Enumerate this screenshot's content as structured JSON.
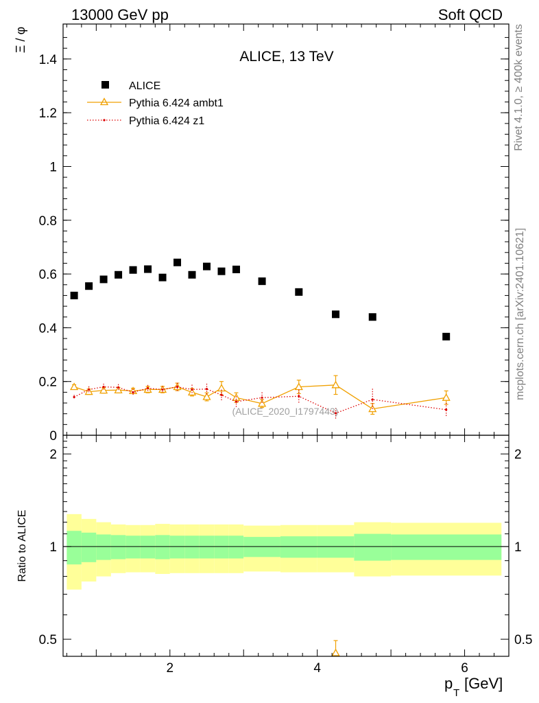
{
  "header": {
    "left": "13000 GeV pp",
    "right": "Soft QCD"
  },
  "side_labels": {
    "rivet": "Rivet 4.1.0, ≥ 400k events",
    "mcplots": "mcplots.cern.ch [arXiv:2401.10621]"
  },
  "chart_data": [
    {
      "panel": "main",
      "type": "scatter",
      "title": "ALICE, 13 TeV",
      "ylabel": "Ξ / φ",
      "xlim": [
        0.55,
        6.6
      ],
      "ylim": [
        0,
        1.53
      ],
      "y_ticks": [
        0,
        0.2,
        0.4,
        0.6,
        0.8,
        1,
        1.2,
        1.4
      ],
      "y_tick_labels": [
        "0",
        "0.2",
        "0.4",
        "0.6",
        "0.8",
        "1",
        "1.2",
        "1.4"
      ],
      "watermark": "(ALICE_2020_I1797443)",
      "legend": [
        {
          "name": "ALICE",
          "style": "black-square"
        },
        {
          "name": "Pythia 6.424 ambt1",
          "style": "orange-triangle-line"
        },
        {
          "name": "Pythia 6.424 z1",
          "style": "red-dotted-line"
        }
      ],
      "series": [
        {
          "name": "ALICE",
          "color": "#000000",
          "x": [
            0.7,
            0.9,
            1.1,
            1.3,
            1.5,
            1.7,
            1.9,
            2.1,
            2.3,
            2.5,
            2.7,
            2.9,
            3.25,
            3.75,
            4.25,
            4.75,
            5.75
          ],
          "y": [
            0.52,
            0.555,
            0.58,
            0.597,
            0.615,
            0.618,
            0.587,
            0.643,
            0.597,
            0.628,
            0.61,
            0.617,
            0.573,
            0.533,
            0.45,
            0.44,
            0.367
          ]
        },
        {
          "name": "Pythia 6.424 ambt1",
          "color": "#f0a000",
          "x": [
            0.7,
            0.9,
            1.1,
            1.3,
            1.5,
            1.7,
            1.9,
            2.1,
            2.3,
            2.5,
            2.7,
            2.9,
            3.25,
            3.75,
            4.25,
            4.75,
            5.75
          ],
          "y": [
            0.18,
            0.162,
            0.167,
            0.168,
            0.165,
            0.17,
            0.17,
            0.18,
            0.16,
            0.143,
            0.175,
            0.14,
            0.118,
            0.18,
            0.187,
            0.098,
            0.14
          ],
          "yerr": [
            0.008,
            0.01,
            0.01,
            0.01,
            0.01,
            0.012,
            0.012,
            0.014,
            0.014,
            0.015,
            0.025,
            0.018,
            0.015,
            0.025,
            0.035,
            0.02,
            0.025
          ]
        },
        {
          "name": "Pythia 6.424 z1",
          "color": "#dd0000",
          "x": [
            0.7,
            0.9,
            1.1,
            1.3,
            1.5,
            1.7,
            1.9,
            2.1,
            2.3,
            2.5,
            2.7,
            2.9,
            3.25,
            3.75,
            4.25,
            4.75,
            5.75
          ],
          "y": [
            0.142,
            0.17,
            0.18,
            0.178,
            0.16,
            0.175,
            0.17,
            0.18,
            0.17,
            0.172,
            0.15,
            0.125,
            0.14,
            0.145,
            0.082,
            0.133,
            0.095
          ],
          "yerr": [
            0.008,
            0.012,
            0.012,
            0.012,
            0.012,
            0.012,
            0.012,
            0.015,
            0.018,
            0.02,
            0.02,
            0.02,
            0.02,
            0.025,
            0.02,
            0.04,
            0.025
          ]
        }
      ]
    },
    {
      "panel": "ratio",
      "type": "band",
      "ylabel": "Ratio to ALICE",
      "xlabel": "p_T [GeV]",
      "xlabel_main": "p",
      "xlabel_sub": "T",
      "xlabel_unit": "[GeV]",
      "xlim": [
        0.55,
        6.6
      ],
      "ylim": [
        0.44,
        2.3
      ],
      "scale": "log",
      "x_ticks": [
        2,
        4,
        6
      ],
      "x_tick_labels": [
        "2",
        "4",
        "6"
      ],
      "y_ticks": [
        0.5,
        1,
        2
      ],
      "y_tick_labels": [
        "0.5",
        "1",
        "2"
      ],
      "bin_edges": [
        0.6,
        0.8,
        1.0,
        1.2,
        1.4,
        1.6,
        1.8,
        2.0,
        2.2,
        2.4,
        2.6,
        2.8,
        3.0,
        3.5,
        4.0,
        4.5,
        5.0,
        6.5
      ],
      "stat_band": [
        0.125,
        0.11,
        0.095,
        0.09,
        0.085,
        0.085,
        0.09,
        0.085,
        0.085,
        0.085,
        0.085,
        0.085,
        0.075,
        0.08,
        0.08,
        0.1,
        0.095
      ],
      "total_band": [
        0.275,
        0.23,
        0.2,
        0.18,
        0.175,
        0.175,
        0.185,
        0.18,
        0.18,
        0.18,
        0.18,
        0.18,
        0.17,
        0.175,
        0.175,
        0.2,
        0.195
      ],
      "ratio_points": [
        {
          "series": "Pythia 6.424 ambt1",
          "x": 4.25,
          "y": 0.415,
          "yerr_up": 0.08
        }
      ]
    }
  ]
}
